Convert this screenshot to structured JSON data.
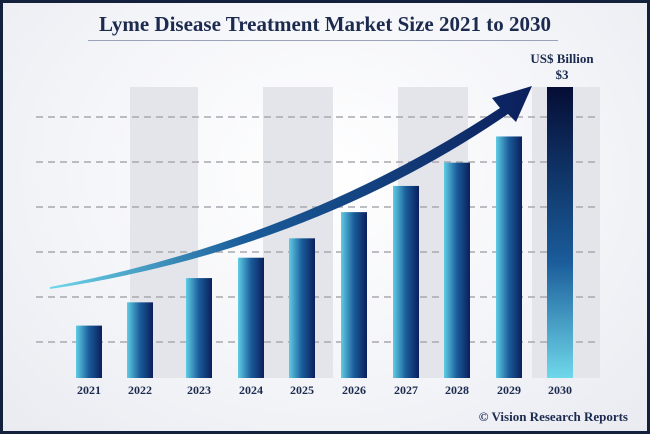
{
  "chart_data": {
    "type": "bar",
    "title": "Lyme Disease Treatment Market Size 2021 to 2030",
    "unit_label": "US$ Billion",
    "end_label": "$3",
    "categories": [
      "2021",
      "2022",
      "2023",
      "2024",
      "2025",
      "2026",
      "2027",
      "2028",
      "2029",
      "2030"
    ],
    "values": [
      0.54,
      0.78,
      1.03,
      1.24,
      1.44,
      1.71,
      1.98,
      2.22,
      2.49,
      3.0
    ],
    "ylim": [
      0,
      3.0
    ],
    "grid": "dashed horizontal",
    "colors": {
      "bar_dark": "#0b1f5c",
      "bar_light": "#5fcde4",
      "title": "#1b2a4e",
      "border": "#14213d"
    }
  },
  "footer": {
    "copyright": "© Vision Research Reports"
  }
}
